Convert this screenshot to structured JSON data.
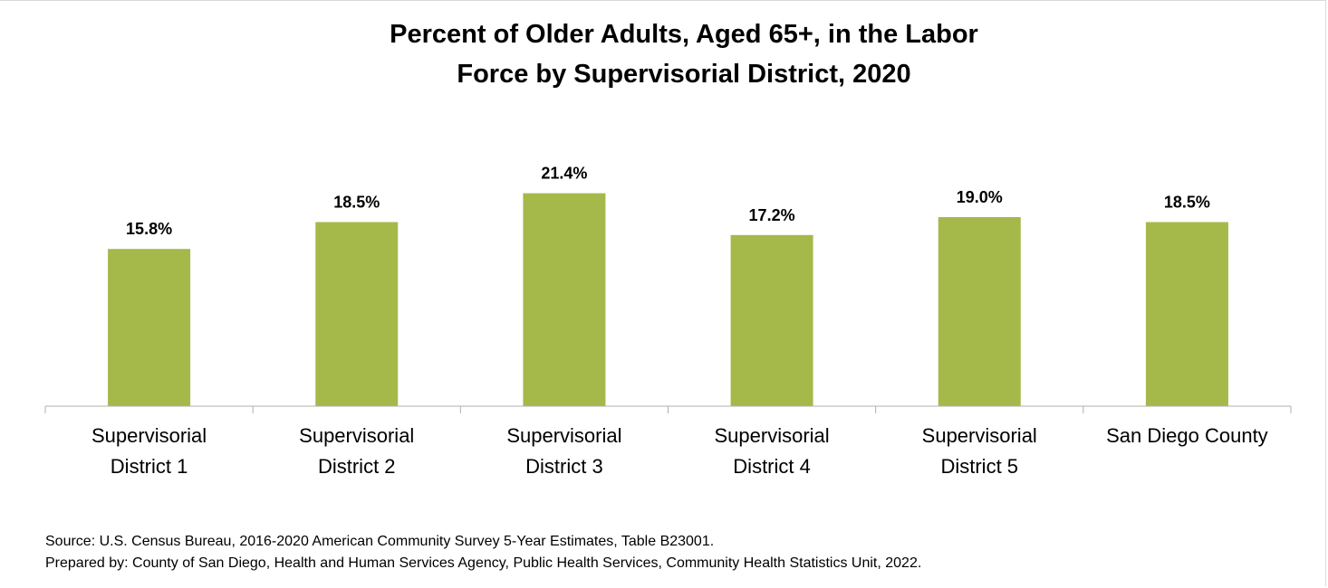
{
  "chart_data": {
    "type": "bar",
    "title_lines": [
      "Percent of Older Adults, Aged 65+, in the Labor",
      "Force by Supervisorial District, 2020"
    ],
    "categories": [
      [
        "Supervisorial",
        "District 1"
      ],
      [
        "Supervisorial",
        "District 2"
      ],
      [
        "Supervisorial",
        "District 3"
      ],
      [
        "Supervisorial",
        "District 4"
      ],
      [
        "Supervisorial",
        "District 5"
      ],
      [
        "San Diego County"
      ]
    ],
    "values": [
      15.8,
      18.5,
      21.4,
      17.2,
      19.0,
      18.5
    ],
    "data_labels": [
      "15.8%",
      "18.5%",
      "21.4%",
      "17.2%",
      "19.0%",
      "18.5%"
    ],
    "unit": "%",
    "ylim": [
      0,
      30
    ],
    "grid": false,
    "legend": "none",
    "bar_color": "#a5b94b",
    "axis_color": "#b0b0b0"
  },
  "footer": {
    "source": "Source: U.S. Census Bureau, 2016-2020 American Community Survey 5-Year Estimates, Table B23001.",
    "prepared_by": "Prepared by: County of San Diego, Health and Human Services Agency, Public Health Services, Community Health Statistics Unit, 2022."
  }
}
